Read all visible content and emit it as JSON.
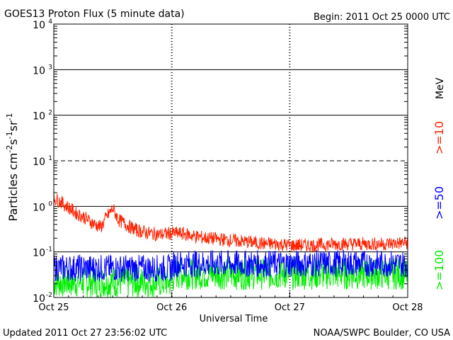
{
  "header": {
    "title": "GOES13 Proton Flux (5 minute data)",
    "begin": "Begin: 2011 Oct 25 0000 UTC"
  },
  "footer": {
    "updated": "Updated 2011 Oct 27 23:56:02 UTC",
    "source": "NOAA/SWPC Boulder, CO USA"
  },
  "chart_data": {
    "type": "line",
    "title": "GOES13 Proton Flux (5 minute data)",
    "xlabel": "Universal Time",
    "ylabel": "Particles cm-2s-1sr-1",
    "yscale": "log",
    "ylim": [
      0.01,
      10000
    ],
    "xlim_days": [
      0,
      3
    ],
    "x_tick_labels": [
      "Oct 25",
      "Oct 26",
      "Oct 27",
      "Oct 28"
    ],
    "y_tick_exponents": [
      "-2",
      "-1",
      "0",
      "1",
      "2",
      "3",
      "4"
    ],
    "y_tick_base": "10",
    "threshold_dashed": [
      10
    ],
    "legend_unit": "MeV",
    "series": [
      {
        "name": ">=10",
        "color": "#ff2200",
        "x_days": [
          0,
          0.05,
          0.1,
          0.15,
          0.2,
          0.25,
          0.3,
          0.35,
          0.4,
          0.45,
          0.5,
          0.55,
          0.6,
          0.65,
          0.7,
          0.8,
          0.9,
          1.0,
          1.1,
          1.2,
          1.3,
          1.4,
          1.5,
          1.6,
          1.7,
          1.8,
          1.9,
          2.0,
          2.2,
          2.4,
          2.6,
          2.8,
          3.0
        ],
        "values": [
          1.5,
          1.3,
          1.05,
          0.85,
          0.68,
          0.6,
          0.48,
          0.4,
          0.35,
          0.6,
          0.9,
          0.5,
          0.42,
          0.35,
          0.3,
          0.26,
          0.24,
          0.26,
          0.25,
          0.22,
          0.2,
          0.19,
          0.18,
          0.17,
          0.16,
          0.15,
          0.15,
          0.14,
          0.14,
          0.15,
          0.15,
          0.15,
          0.16
        ]
      },
      {
        "name": ">=50",
        "color": "#0000ff",
        "x_days": [
          0,
          0.5,
          1.0,
          1.02,
          1.5,
          2.0,
          2.5,
          3.0
        ],
        "values": [
          0.045,
          0.044,
          0.044,
          0.055,
          0.055,
          0.055,
          0.056,
          0.055
        ]
      },
      {
        "name": ">=100",
        "color": "#00ee00",
        "x_days": [
          0,
          0.5,
          1.0,
          1.02,
          1.5,
          2.0,
          2.5,
          3.0
        ],
        "values": [
          0.022,
          0.022,
          0.022,
          0.033,
          0.033,
          0.033,
          0.033,
          0.033
        ]
      }
    ]
  }
}
